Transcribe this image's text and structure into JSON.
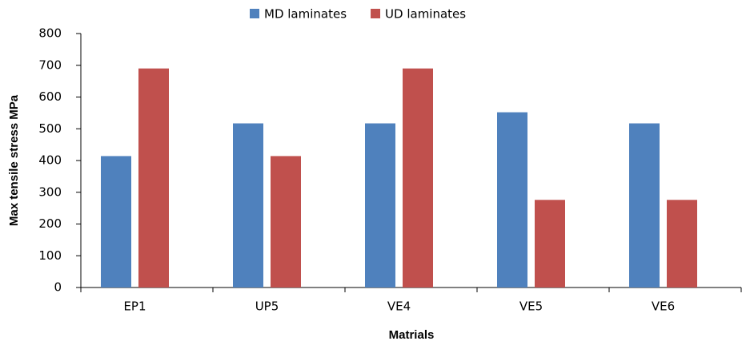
{
  "chart_data": {
    "type": "bar",
    "xlabel": "Matrials",
    "ylabel": "Max tensile stress MPa",
    "categories": [
      "EP1",
      "UP5",
      "VE4",
      "VE5",
      "VE6"
    ],
    "series": [
      {
        "name": "MD laminates",
        "color": "#4f81bd",
        "values": [
          414,
          517,
          517,
          552,
          517
        ]
      },
      {
        "name": "UD laminates",
        "color": "#c0504d",
        "values": [
          690,
          414,
          690,
          276,
          276
        ]
      }
    ],
    "ylim": [
      0,
      800
    ],
    "yticks": [
      0,
      100,
      200,
      300,
      400,
      500,
      600,
      700,
      800
    ],
    "legend": "top"
  }
}
